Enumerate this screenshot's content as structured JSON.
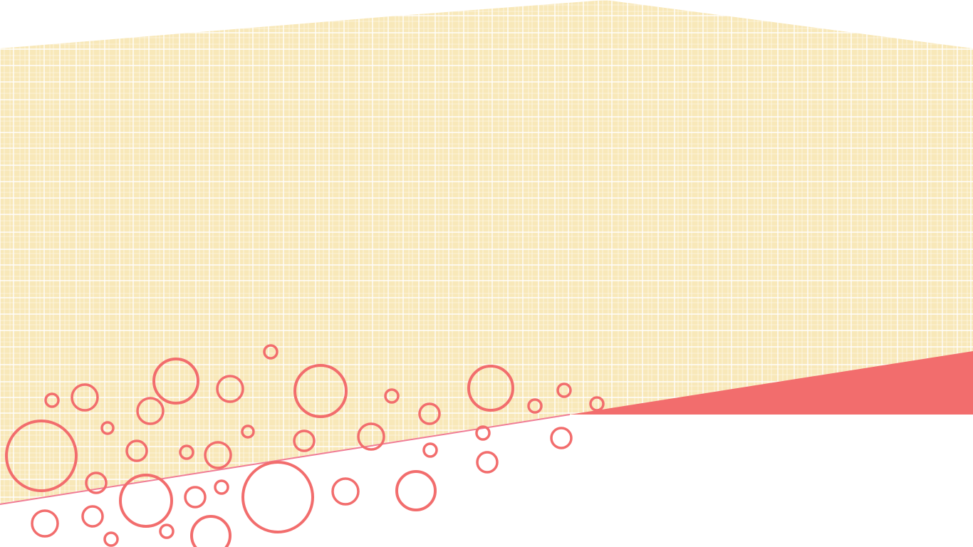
{
  "slide": {
    "colors": {
      "background": "#ffffff",
      "paper": "#f8e8b9",
      "grid_line": "#ffffff",
      "accent": "#f26d6d",
      "divider_line": "#f07c96"
    },
    "decor": {
      "pattern": "plaid-grid",
      "ornament": "bubble-circles-outline",
      "accent_shape": "coral-wedge"
    }
  }
}
